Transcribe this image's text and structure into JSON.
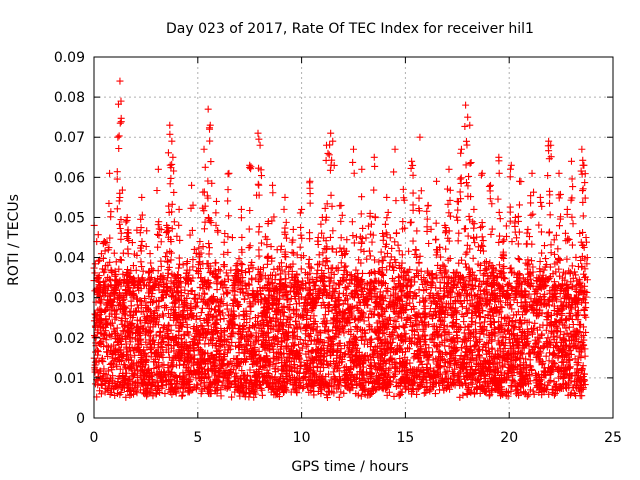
{
  "chart_data": {
    "type": "scatter",
    "title": "Day 023 of 2017, Rate Of TEC Index for receiver hil1",
    "xlabel": "GPS time / hours",
    "ylabel": "ROTI / TECUs",
    "xlim": [
      0,
      25
    ],
    "ylim": [
      0,
      0.09
    ],
    "xticks": [
      0,
      5,
      10,
      15,
      20,
      25
    ],
    "xtick_labels": [
      "0",
      "5",
      "10",
      "15",
      "20",
      "25"
    ],
    "yticks": [
      0,
      0.01,
      0.02,
      0.03,
      0.04,
      0.05,
      0.06,
      0.07,
      0.08,
      0.09
    ],
    "ytick_labels": [
      "0",
      "0.01",
      "0.02",
      "0.03",
      "0.04",
      "0.05",
      "0.06",
      "0.07",
      "0.08",
      "0.09"
    ],
    "grid": true,
    "marker": "+",
    "marker_color": "#ff0000",
    "series": [
      {
        "name": "ROTI",
        "x": [
          0.05,
          0.2,
          0.35,
          0.5,
          0.62,
          0.75,
          0.85,
          1.0,
          1.15,
          1.25,
          1.3,
          1.45,
          1.6,
          1.75,
          1.9,
          2.1,
          2.3,
          2.5,
          2.7,
          2.9,
          3.1,
          3.3,
          3.5,
          3.65,
          3.75,
          3.8,
          3.9,
          4.1,
          4.3,
          4.5,
          4.7,
          4.9,
          5.1,
          5.3,
          5.5,
          5.6,
          5.7,
          5.9,
          6.1,
          6.3,
          6.5,
          6.7,
          6.9,
          7.1,
          7.3,
          7.5,
          7.7,
          7.9,
          8.0,
          8.2,
          8.4,
          8.6,
          8.8,
          9.0,
          9.2,
          9.4,
          9.6,
          9.8,
          10.0,
          10.2,
          10.4,
          10.6,
          10.8,
          11.0,
          11.2,
          11.4,
          11.5,
          11.7,
          11.9,
          12.1,
          12.3,
          12.5,
          12.7,
          12.9,
          13.1,
          13.3,
          13.5,
          13.7,
          13.9,
          14.1,
          14.3,
          14.5,
          14.7,
          14.9,
          15.1,
          15.3,
          15.5,
          15.7,
          15.9,
          16.1,
          16.3,
          16.5,
          16.7,
          16.9,
          17.1,
          17.3,
          17.5,
          17.7,
          17.9,
          18.0,
          18.1,
          18.3,
          18.5,
          18.7,
          18.9,
          19.1,
          19.3,
          19.5,
          19.7,
          19.9,
          20.1,
          20.3,
          20.5,
          20.7,
          20.9,
          21.1,
          21.3,
          21.5,
          21.7,
          21.9,
          22.0,
          22.2,
          22.4,
          22.6,
          22.8,
          23.0,
          23.2,
          23.4,
          23.5,
          23.6,
          23.7
        ],
        "y": [
          0.012,
          0.035,
          0.021,
          0.044,
          0.018,
          0.061,
          0.028,
          0.033,
          0.07,
          0.084,
          0.079,
          0.026,
          0.05,
          0.019,
          0.038,
          0.012,
          0.055,
          0.022,
          0.041,
          0.016,
          0.062,
          0.03,
          0.048,
          0.073,
          0.069,
          0.065,
          0.025,
          0.052,
          0.017,
          0.039,
          0.058,
          0.011,
          0.044,
          0.067,
          0.077,
          0.073,
          0.029,
          0.054,
          0.018,
          0.046,
          0.061,
          0.021,
          0.037,
          0.052,
          0.014,
          0.063,
          0.031,
          0.071,
          0.068,
          0.026,
          0.049,
          0.058,
          0.016,
          0.042,
          0.055,
          0.012,
          0.047,
          0.034,
          0.052,
          0.021,
          0.059,
          0.028,
          0.045,
          0.05,
          0.068,
          0.071,
          0.069,
          0.024,
          0.053,
          0.041,
          0.019,
          0.067,
          0.036,
          0.062,
          0.029,
          0.051,
          0.065,
          0.022,
          0.046,
          0.055,
          0.017,
          0.067,
          0.038,
          0.057,
          0.031,
          0.064,
          0.042,
          0.07,
          0.019,
          0.053,
          0.036,
          0.059,
          0.024,
          0.048,
          0.062,
          0.015,
          0.054,
          0.067,
          0.078,
          0.075,
          0.073,
          0.052,
          0.028,
          0.061,
          0.039,
          0.058,
          0.021,
          0.065,
          0.044,
          0.031,
          0.063,
          0.05,
          0.059,
          0.018,
          0.047,
          0.061,
          0.026,
          0.055,
          0.043,
          0.069,
          0.068,
          0.033,
          0.061,
          0.017,
          0.052,
          0.064,
          0.029,
          0.046,
          0.067,
          0.063,
          0.045
        ],
        "bulk_range": [
          0.005,
          0.045
        ]
      }
    ]
  }
}
